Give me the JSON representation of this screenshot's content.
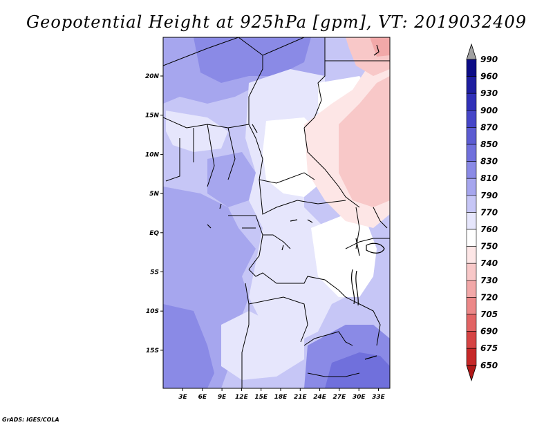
{
  "title": "Geopotential Height at 925hPa [gpm], VT: 2019032409",
  "footer": "GrADS: IGES/COLA",
  "map": {
    "y_ticks": [
      "20N",
      "15N",
      "10N",
      "5N",
      "EQ",
      "5S",
      "10S",
      "15S"
    ],
    "x_ticks": [
      "3E",
      "6E",
      "9E",
      "12E",
      "15E",
      "18E",
      "21E",
      "24E",
      "27E",
      "30E",
      "33E"
    ]
  },
  "legend": {
    "levels": [
      "990",
      "960",
      "930",
      "900",
      "870",
      "850",
      "830",
      "810",
      "790",
      "770",
      "760",
      "750",
      "740",
      "730",
      "720",
      "705",
      "690",
      "675",
      "650"
    ],
    "colors": [
      "#0c0c86",
      "#1e1ea0",
      "#3030b8",
      "#4646c8",
      "#5c5cd2",
      "#7070dc",
      "#8a8ae6",
      "#a6a6ee",
      "#c6c6f6",
      "#e6e6fc",
      "#ffffff",
      "#fde6e6",
      "#f8c8c8",
      "#f2a8a8",
      "#ec8888",
      "#e26464",
      "#d64444",
      "#c62828",
      "#b01818"
    ],
    "top_cap_color": "#a0a0a0",
    "bottom_cap_color": "#b01818"
  }
}
